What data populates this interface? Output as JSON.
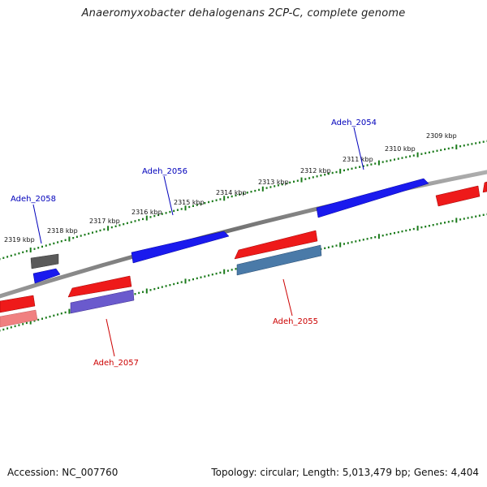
{
  "title": "Anaeromyxobacter dehalogenans 2CP-C, complete genome",
  "footer": {
    "accession": "Accession: NC_007760",
    "summary": "Topology: circular; Length: 5,013,479 bp; Genes: 4,404"
  },
  "colors": {
    "backbone": "#808080",
    "tick": "#1a7a1a",
    "forward_gene": "#0000ee",
    "reverse_gene": "#ee0000",
    "forward_label": "#0000bb",
    "reverse_label": "#cc0000"
  },
  "scale": {
    "unit": "kbp",
    "labels": [
      "2309 kbp",
      "2310 kbp",
      "2311 kbp",
      "2312 kbp",
      "2313 kbp",
      "2314 kbp",
      "2315 kbp",
      "2316 kbp",
      "2317 kbp",
      "2318 kbp",
      "2319 kbp"
    ]
  },
  "gene_labels": [
    {
      "name": "Adeh_2054",
      "strand": "forward"
    },
    {
      "name": "Adeh_2055",
      "strand": "reverse"
    },
    {
      "name": "Adeh_2056",
      "strand": "forward"
    },
    {
      "name": "Adeh_2057",
      "strand": "reverse"
    },
    {
      "name": "Adeh_2058",
      "strand": "forward"
    }
  ]
}
